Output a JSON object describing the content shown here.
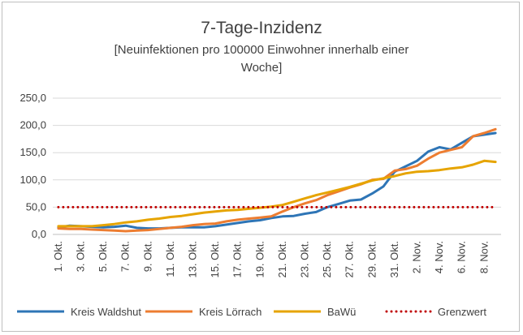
{
  "chart_data": {
    "type": "line",
    "title": "7-Tage-Inzidenz",
    "subtitle_line1": "[Neuinfektionen  pro  100000  Einwohner  innerhalb  einer",
    "subtitle_line2": "Woche]",
    "ylim": [
      0,
      250
    ],
    "yticks": [
      "0,0",
      "50,0",
      "100,0",
      "150,0",
      "200,0",
      "250,0"
    ],
    "ytick_values": [
      0,
      50,
      100,
      150,
      200,
      250
    ],
    "xtick_labels": [
      "1. Okt.",
      "3. Okt.",
      "5. Okt.",
      "7. Okt.",
      "9. Okt.",
      "11. Okt.",
      "13. Okt.",
      "15. Okt.",
      "17. Okt.",
      "19. Okt.",
      "21. Okt.",
      "23. Okt.",
      "25. Okt.",
      "27. Okt.",
      "29. Okt.",
      "31. Okt.",
      "2. Nov.",
      "4. Nov.",
      "6. Nov.",
      "8. Nov."
    ],
    "xtick_every": 2,
    "point_count": 40,
    "legend_position": "bottom",
    "grid": true,
    "series": [
      {
        "name": "Kreis Waldshut",
        "color": "#2e75b6",
        "style": "solid",
        "values": [
          13,
          16,
          15,
          14,
          13,
          14,
          16,
          12,
          11,
          11,
          12,
          13,
          13,
          13,
          15,
          18,
          21,
          24,
          26,
          30,
          33,
          34,
          38,
          41,
          50,
          56,
          62,
          64,
          75,
          88,
          115,
          125,
          135,
          152,
          160,
          156,
          168,
          180,
          183,
          186
        ]
      },
      {
        "name": "Kreis Lörrach",
        "color": "#ed7d31",
        "style": "solid",
        "values": [
          11,
          10,
          10,
          9,
          8,
          7,
          6,
          7,
          8,
          10,
          12,
          14,
          17,
          19,
          20,
          24,
          27,
          29,
          31,
          33,
          42,
          50,
          57,
          63,
          72,
          79,
          86,
          92,
          100,
          102,
          117,
          120,
          126,
          139,
          150,
          155,
          160,
          180,
          186,
          193
        ]
      },
      {
        "name": "BaWü",
        "color": "#e6a400",
        "style": "solid",
        "values": [
          15,
          15,
          15,
          15,
          17,
          19,
          22,
          24,
          27,
          29,
          32,
          34,
          37,
          40,
          42,
          44,
          45,
          47,
          49,
          51,
          54,
          60,
          66,
          72,
          77,
          82,
          87,
          93,
          99,
          103,
          107,
          112,
          115,
          116,
          118,
          121,
          123,
          128,
          135,
          133
        ]
      },
      {
        "name": "Grenzwert",
        "color": "#c00000",
        "style": "dotted",
        "values": [
          50,
          50,
          50,
          50,
          50,
          50,
          50,
          50,
          50,
          50,
          50,
          50,
          50,
          50,
          50,
          50,
          50,
          50,
          50,
          50,
          50,
          50,
          50,
          50,
          50,
          50,
          50,
          50,
          50,
          50,
          50,
          50,
          50,
          50,
          50,
          50,
          50,
          50,
          50,
          50
        ]
      }
    ]
  }
}
